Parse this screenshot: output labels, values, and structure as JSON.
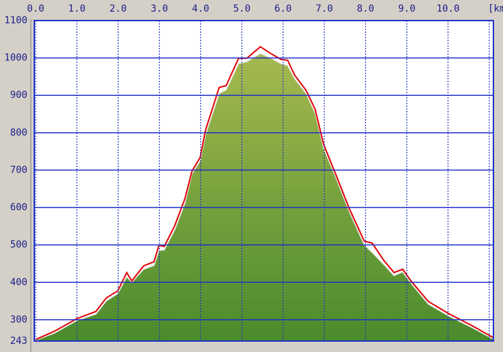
{
  "chart_data": {
    "type": "elevation-profile",
    "x_unit_label": "[km",
    "x": [
      0,
      0.47,
      1.0,
      1.46,
      1.71,
      1.99,
      2.21,
      2.33,
      2.62,
      2.87,
      2.99,
      3.12,
      3.37,
      3.62,
      3.79,
      3.99,
      4.12,
      4.45,
      4.62,
      4.92,
      5.12,
      5.45,
      5.7,
      5.95,
      6.11,
      6.28,
      6.56,
      6.78,
      6.98,
      7.28,
      7.61,
      7.97,
      8.16,
      8.44,
      8.69,
      8.9,
      9.1,
      9.52,
      10.02,
      10.6,
      11.1
    ],
    "series": [
      {
        "kind": "area",
        "color": [
          "#a6b94f",
          "#4a8b2c"
        ],
        "values": [
          245,
          265,
          298,
          315,
          350,
          370,
          415,
          400,
          435,
          445,
          485,
          487,
          540,
          612,
          690,
          725,
          795,
          905,
          915,
          985,
          990,
          1012,
          1000,
          985,
          980,
          945,
          905,
          852,
          760,
          680,
          588,
          500,
          480,
          448,
          418,
          428,
          398,
          342,
          310,
          278,
          248
        ]
      },
      {
        "kind": "line",
        "color": "#e00000",
        "values": [
          247,
          270,
          303,
          322,
          358,
          377,
          426,
          404,
          444,
          455,
          499,
          496,
          551,
          624,
          697,
          734,
          807,
          921,
          926,
          999,
          999,
          1030,
          1012,
          996,
          994,
          954,
          913,
          862,
          770,
          688,
          596,
          510,
          505,
          459,
          426,
          435,
          404,
          349,
          316,
          283,
          252
        ]
      }
    ],
    "xlim": [
      0,
      11.1
    ],
    "xticks": [
      {
        "value": 0,
        "label": "0.0"
      },
      {
        "value": 1,
        "label": "1.0"
      },
      {
        "value": 2,
        "label": "2.0"
      },
      {
        "value": 3,
        "label": "3.0"
      },
      {
        "value": 4,
        "label": "4.0"
      },
      {
        "value": 5,
        "label": "5.0"
      },
      {
        "value": 6,
        "label": "6.0"
      },
      {
        "value": 7,
        "label": "7.0"
      },
      {
        "value": 8,
        "label": "8.0"
      },
      {
        "value": 9,
        "label": "9.0"
      },
      {
        "value": 10,
        "label": "10.0"
      },
      11
    ],
    "ylim": [
      243,
      1100
    ],
    "yticks": [
      243,
      300,
      400,
      500,
      600,
      700,
      800,
      900,
      1000,
      1100
    ],
    "grid": true,
    "grid_color": "#1f2fc8"
  }
}
